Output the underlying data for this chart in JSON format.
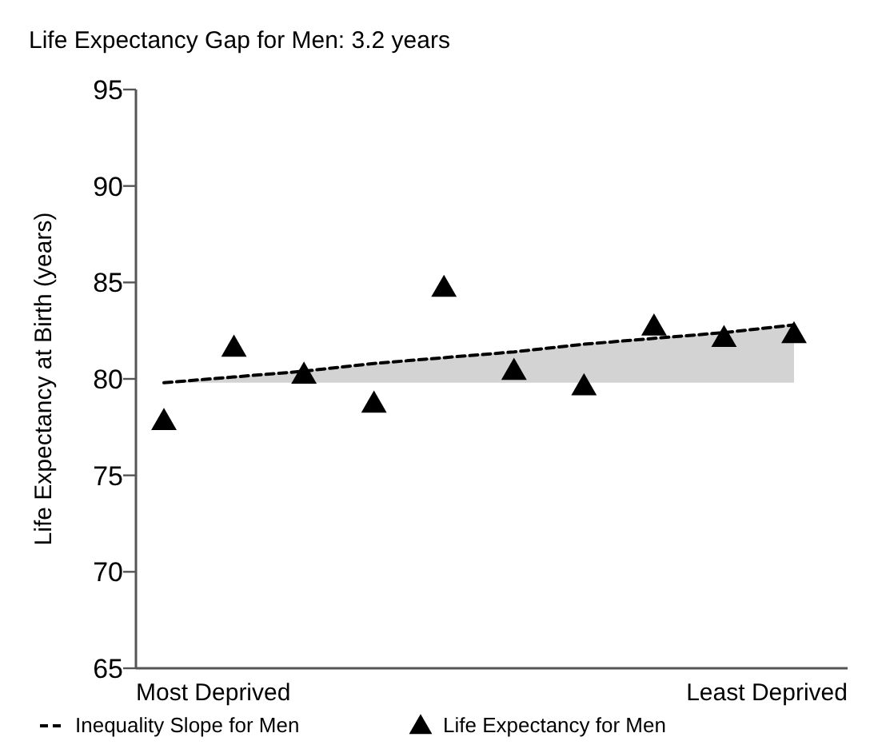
{
  "chart_data": {
    "type": "scatter",
    "title": "Life Expectancy Gap for Men: 3.2 years",
    "ylabel": "Life Expectancy at Birth (years)",
    "categories": [
      null,
      null,
      null,
      null,
      null,
      null,
      null,
      null,
      null,
      null
    ],
    "annotations": [
      "Most Deprived",
      "Least Deprived"
    ],
    "series": [
      {
        "name": "Inequality Slope for Men",
        "type": "line",
        "color": "#000000",
        "line_style": "dashed",
        "marker": "none",
        "values": [
          79.8,
          80.1,
          80.4,
          80.8,
          81.1,
          81.4,
          81.8,
          82.1,
          82.4,
          82.8
        ],
        "lower": [
          79.8,
          79.8,
          79.8,
          79.8,
          79.8,
          79.8,
          79.8,
          79.8,
          79.8,
          79.8
        ],
        "upper": [
          79.8,
          80.1,
          80.4,
          80.8,
          81.1,
          81.4,
          81.8,
          82.1,
          82.4,
          82.8
        ]
      },
      {
        "name": "Life Expectancy for Men",
        "type": "scatter",
        "color": "#000000",
        "marker": "triangle",
        "values": [
          77.9,
          81.7,
          80.3,
          78.8,
          84.8,
          80.5,
          79.7,
          82.8,
          82.2,
          82.4
        ]
      }
    ],
    "ylim": [
      65,
      95
    ],
    "yticks": [
      65,
      70,
      75,
      80,
      85,
      90,
      95
    ],
    "grid": false,
    "legend": "bottom"
  }
}
